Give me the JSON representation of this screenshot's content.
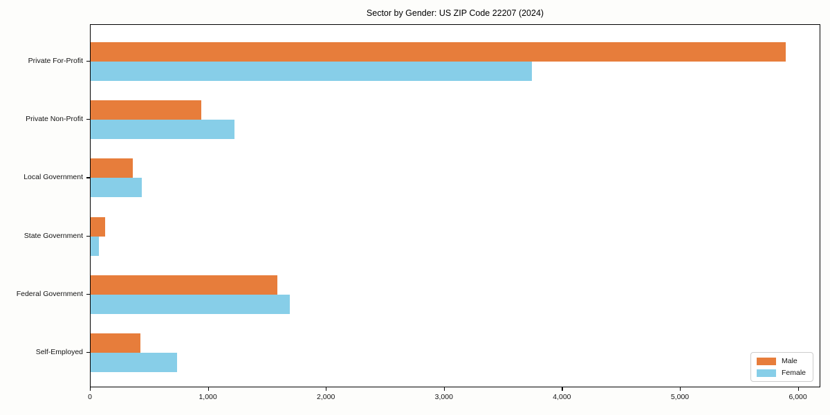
{
  "figure": {
    "title": "Sector by Gender: US ZIP Code 22207 (2024)"
  },
  "chart_data": {
    "type": "bar",
    "orientation": "horizontal",
    "title": "Sector by Gender: US ZIP Code 22207 (2024)",
    "categories": [
      "Private For-Profit",
      "Private Non-Profit",
      "Local Government",
      "State Government",
      "Federal Government",
      "Self-Employed"
    ],
    "series": [
      {
        "name": "Male",
        "color": "#e77d3b",
        "values": [
          5890,
          940,
          355,
          125,
          1580,
          420
        ]
      },
      {
        "name": "Female",
        "color": "#87cee8",
        "values": [
          3740,
          1220,
          435,
          70,
          1690,
          730
        ]
      }
    ],
    "xlabel": "",
    "ylabel": "",
    "xlim": [
      0,
      6190
    ],
    "xticks": [
      0,
      1000,
      2000,
      3000,
      4000,
      5000,
      6000
    ],
    "xtick_labels": [
      "0",
      "1,000",
      "2,000",
      "3,000",
      "4,000",
      "5,000",
      "6,000"
    ],
    "grid": false,
    "legend_position": "lower right",
    "colors": {
      "male": "#e77d3b",
      "female": "#87cee8",
      "spine": "#000000",
      "plot_bg": "#ffffff"
    }
  }
}
